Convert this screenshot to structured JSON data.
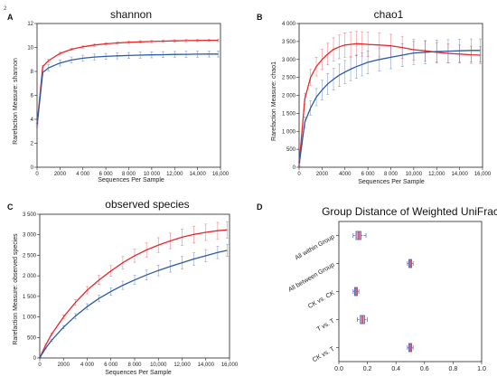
{
  "figure": {
    "corner_mark": "2",
    "colors": {
      "red": "#e8272b",
      "blue": "#2b5aa8",
      "errbar": "#8fa6cf",
      "box_fill": "#d9a3c2",
      "box_edge": "#4b63b5",
      "median": "#d8233b"
    }
  },
  "chart_data": [
    {
      "panel": "A",
      "type": "line",
      "title": "shannon",
      "xlabel": "Sequences Per Sample",
      "ylabel": "Rarefaction Measure: shannon",
      "xlim": [
        0,
        16000
      ],
      "ylim": [
        0,
        12
      ],
      "xticks": [
        0,
        2000,
        4000,
        6000,
        8000,
        10000,
        12000,
        14000,
        16000
      ],
      "xtick_labels": [
        "0",
        "2000",
        "4 000",
        "6 000",
        "8 000",
        "10 000",
        "12,000",
        "14,000",
        "16,000"
      ],
      "yticks": [
        0,
        2,
        4,
        6,
        8,
        10,
        12
      ],
      "ytick_labels": [
        "0",
        "2",
        "4",
        "6",
        "8",
        "10",
        "12"
      ],
      "grid": false,
      "series": [
        {
          "color": "red",
          "x": [
            10,
            500,
            1000,
            2000,
            3000,
            4000,
            5000,
            6000,
            7000,
            8000,
            9000,
            10000,
            11000,
            12000,
            13000,
            14000,
            15000,
            15800
          ],
          "y": [
            3.6,
            8.4,
            8.9,
            9.5,
            9.85,
            10.05,
            10.2,
            10.3,
            10.38,
            10.43,
            10.47,
            10.5,
            10.53,
            10.55,
            10.57,
            10.58,
            10.6,
            10.6
          ],
          "err": [
            0.1,
            0.1,
            0.1,
            0.1,
            0.1,
            0.1,
            0.1,
            0.1,
            0.1,
            0.1,
            0.1,
            0.1,
            0.1,
            0.1,
            0.1,
            0.1,
            0.1,
            0.1
          ]
        },
        {
          "color": "blue",
          "x": [
            10,
            500,
            1000,
            2000,
            3000,
            4000,
            5000,
            6000,
            7000,
            8000,
            9000,
            10000,
            11000,
            12000,
            13000,
            14000,
            15000,
            15800
          ],
          "y": [
            3.5,
            7.9,
            8.3,
            8.7,
            8.95,
            9.1,
            9.2,
            9.25,
            9.3,
            9.33,
            9.36,
            9.38,
            9.4,
            9.42,
            9.43,
            9.44,
            9.45,
            9.45
          ],
          "err": [
            0.15,
            0.2,
            0.25,
            0.25,
            0.25,
            0.25,
            0.25,
            0.25,
            0.25,
            0.25,
            0.25,
            0.25,
            0.25,
            0.25,
            0.25,
            0.25,
            0.25,
            0.25
          ]
        }
      ]
    },
    {
      "panel": "B",
      "type": "line",
      "title": "chao1",
      "xlabel": "Sequences Per Sample",
      "ylabel": "Rarefaction Measure: chao1",
      "xlim": [
        0,
        16000
      ],
      "ylim": [
        0,
        4000
      ],
      "xticks": [
        0,
        2000,
        4000,
        6000,
        8000,
        10000,
        12000,
        14000,
        16000
      ],
      "xtick_labels": [
        "0",
        "2000",
        "4000",
        "6 000",
        "8 000",
        "10,000",
        "12,000",
        "14,000",
        "16,000"
      ],
      "yticks": [
        0,
        500,
        1000,
        1500,
        2000,
        2500,
        3000,
        3500,
        4000
      ],
      "ytick_labels": [
        "0",
        "500",
        "1 000",
        "1 500",
        "2 000",
        "2 500",
        "3 000",
        "3 500",
        "4 000"
      ],
      "grid": false,
      "series": [
        {
          "color": "red",
          "x": [
            10,
            500,
            1000,
            1500,
            2000,
            2500,
            3000,
            3500,
            4000,
            4500,
            5000,
            5500,
            6000,
            7000,
            8000,
            9000,
            10000,
            11000,
            12000,
            13000,
            14000,
            15000,
            15800
          ],
          "y": [
            100,
            1900,
            2500,
            2800,
            3000,
            3150,
            3280,
            3350,
            3400,
            3420,
            3440,
            3430,
            3420,
            3400,
            3380,
            3330,
            3270,
            3240,
            3200,
            3170,
            3150,
            3130,
            3120
          ],
          "err": [
            50,
            150,
            220,
            260,
            280,
            300,
            320,
            330,
            340,
            340,
            340,
            340,
            340,
            330,
            320,
            300,
            290,
            280,
            270,
            260,
            250,
            240,
            240
          ]
        },
        {
          "color": "blue",
          "x": [
            10,
            500,
            1000,
            1500,
            2000,
            2500,
            3000,
            3500,
            4000,
            4500,
            5000,
            5500,
            6000,
            7000,
            8000,
            9000,
            10000,
            11000,
            12000,
            13000,
            14000,
            15000,
            15800
          ],
          "y": [
            80,
            1250,
            1650,
            1950,
            2150,
            2320,
            2450,
            2560,
            2650,
            2730,
            2800,
            2860,
            2920,
            3000,
            3060,
            3120,
            3180,
            3200,
            3220,
            3230,
            3240,
            3250,
            3250
          ],
          "err": [
            50,
            150,
            200,
            240,
            270,
            290,
            300,
            310,
            320,
            320,
            320,
            320,
            320,
            320,
            320,
            320,
            320,
            320,
            320,
            320,
            320,
            320,
            320
          ]
        }
      ]
    },
    {
      "panel": "C",
      "type": "line",
      "title": "observed species",
      "xlabel": "Sequences Per Sample",
      "ylabel": "Rarefaction Measure: observed species",
      "xlim": [
        0,
        16000
      ],
      "ylim": [
        0,
        3500
      ],
      "xticks": [
        0,
        2000,
        4000,
        6000,
        8000,
        10000,
        12000,
        14000,
        16000
      ],
      "xtick_labels": [
        "0",
        "2000",
        "4 000",
        "6 000",
        "8 000",
        "10,000",
        "12,000",
        "14,000",
        "16,000"
      ],
      "yticks": [
        0,
        500,
        1000,
        1500,
        2000,
        2500,
        3000,
        3500
      ],
      "ytick_labels": [
        "0",
        "500",
        "1 000",
        "1 500",
        "2 000",
        "2 500",
        "3 000",
        "3 500"
      ],
      "grid": false,
      "series": [
        {
          "color": "red",
          "x": [
            10,
            500,
            1000,
            2000,
            3000,
            4000,
            5000,
            6000,
            7000,
            8000,
            9000,
            10000,
            11000,
            12000,
            13000,
            14000,
            15000,
            15800
          ],
          "y": [
            10,
            320,
            580,
            1000,
            1350,
            1650,
            1900,
            2120,
            2320,
            2490,
            2630,
            2750,
            2850,
            2940,
            3010,
            3060,
            3100,
            3120
          ],
          "err": [
            5,
            20,
            30,
            50,
            70,
            90,
            110,
            130,
            150,
            160,
            170,
            180,
            190,
            195,
            200,
            200,
            200,
            200
          ]
        },
        {
          "color": "blue",
          "x": [
            10,
            500,
            1000,
            2000,
            3000,
            4000,
            5000,
            6000,
            7000,
            8000,
            9000,
            10000,
            11000,
            12000,
            13000,
            14000,
            15000,
            15800
          ],
          "y": [
            10,
            240,
            430,
            750,
            1020,
            1250,
            1450,
            1620,
            1770,
            1900,
            2020,
            2130,
            2230,
            2320,
            2410,
            2490,
            2570,
            2620
          ],
          "err": [
            5,
            20,
            30,
            40,
            60,
            70,
            80,
            90,
            100,
            110,
            120,
            130,
            140,
            150,
            150,
            150,
            150,
            150
          ]
        }
      ]
    },
    {
      "panel": "D",
      "type": "box",
      "title": "Group Distance of Weighted UniFrac",
      "xlim": [
        0,
        1
      ],
      "xticks": [
        0,
        0.2,
        0.4,
        0.6,
        0.8,
        1
      ],
      "xtick_labels": [
        "0.0",
        "0.2",
        "0.4",
        "0.6",
        "0.8",
        "1.0"
      ],
      "grid": false,
      "boxes": [
        {
          "label": "All within Group",
          "whisker_low": 0.1,
          "q1": 0.12,
          "median": 0.14,
          "q3": 0.155,
          "whisker_high": 0.19
        },
        {
          "label": "All between Group",
          "whisker_low": 0.48,
          "q1": 0.49,
          "median": 0.5,
          "q3": 0.51,
          "whisker_high": 0.52
        },
        {
          "label": "CK vs. CK",
          "whisker_low": 0.1,
          "q1": 0.11,
          "median": 0.12,
          "q3": 0.13,
          "whisker_high": 0.14
        },
        {
          "label": "T vs. T",
          "whisker_low": 0.13,
          "q1": 0.15,
          "median": 0.165,
          "q3": 0.18,
          "whisker_high": 0.2
        },
        {
          "label": "CK vs. T",
          "whisker_low": 0.48,
          "q1": 0.49,
          "median": 0.5,
          "q3": 0.51,
          "whisker_high": 0.52
        }
      ]
    }
  ]
}
